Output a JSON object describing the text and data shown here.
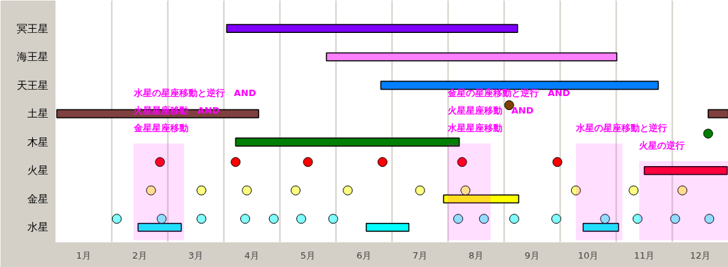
{
  "chart_data": {
    "type": "bar",
    "orientation": "horizontal",
    "legend": false,
    "grid": "x",
    "categories": [
      "冥王星",
      "海王星",
      "天王星",
      "土星",
      "木星",
      "火星",
      "金星",
      "水星"
    ],
    "xlim": [
      0,
      12
    ],
    "xticks": [
      {
        "value": 0.5,
        "label": "1月"
      },
      {
        "value": 1,
        "label": null
      },
      {
        "value": 1.5,
        "label": "2月"
      },
      {
        "value": 2,
        "label": null
      },
      {
        "value": 2.5,
        "label": "3月"
      },
      {
        "value": 3,
        "label": null
      },
      {
        "value": 3.5,
        "label": "4月"
      },
      {
        "value": 4,
        "label": null
      },
      {
        "value": 4.5,
        "label": "5月"
      },
      {
        "value": 5,
        "label": null
      },
      {
        "value": 5.5,
        "label": "6月"
      },
      {
        "value": 6,
        "label": null
      },
      {
        "value": 6.5,
        "label": "7月"
      },
      {
        "value": 7,
        "label": null
      },
      {
        "value": 7.5,
        "label": "8月"
      },
      {
        "value": 8,
        "label": null
      },
      {
        "value": 8.5,
        "label": "9月"
      },
      {
        "value": 9,
        "label": null
      },
      {
        "value": 9.5,
        "label": "10月"
      },
      {
        "value": 10,
        "label": null
      },
      {
        "value": 10.5,
        "label": "11月"
      },
      {
        "value": 11,
        "label": null
      },
      {
        "value": 11.5,
        "label": "12月"
      }
    ],
    "series": [
      {
        "base": [
          3.05,
          4.83,
          5.8,
          0.02,
          3.21,
          10.5,
          6.92,
          1.47
        ],
        "values": [
          5.19,
          5.18,
          4.95,
          3.6,
          3.99,
          1.48,
          1.34,
          0.77
        ],
        "colors": [
          "#8000ff",
          "#ff80ff",
          "#0080ff",
          "#804040",
          "#008000",
          "#ff0020",
          "#ffff00",
          "#00ffff"
        ]
      },
      {
        "base": [
          null,
          null,
          null,
          11.64,
          null,
          null,
          null,
          5.54
        ],
        "values": [
          null,
          null,
          null,
          0.36,
          null,
          null,
          null,
          0.76
        ],
        "colors": [
          "#804040",
          "#804040",
          "#804040",
          "#804040",
          "#804040",
          "#804040",
          "#804040",
          "#00ffff"
        ]
      },
      {
        "base": [
          null,
          null,
          null,
          null,
          null,
          null,
          null,
          9.41
        ],
        "values": [
          null,
          null,
          null,
          null,
          null,
          null,
          null,
          0.63
        ],
        "colors": [
          "#00ffff",
          "#00ffff",
          "#00ffff",
          "#00ffff",
          "#00ffff",
          "#00ffff",
          "#00ffff",
          "#00ffff"
        ]
      },
      {
        "type": "scatter",
        "x": [
          "土星"
        ],
        "values": [
          8.09
        ],
        "color": "#804000"
      },
      {
        "type": "scatter",
        "x": [
          "木星"
        ],
        "values": [
          11.64
        ],
        "color": "#008000"
      },
      {
        "type": "scatter",
        "x": [
          "火星",
          "火星",
          "火星",
          "火星",
          "火星",
          "火星"
        ],
        "values": [
          1.86,
          3.21,
          4.5,
          5.83,
          7.25,
          8.95
        ],
        "color": "#ff0000"
      },
      {
        "type": "scatter",
        "x": [
          "金星",
          "金星",
          "金星",
          "金星",
          "金星",
          "金星",
          "金星",
          "金星",
          "金星",
          "金星"
        ],
        "values": [
          1.7,
          2.6,
          3.41,
          4.28,
          5.21,
          6.5,
          7.31,
          9.28,
          10.31,
          11.18
        ],
        "color": "#ffff80"
      },
      {
        "type": "scatter",
        "x": [
          "水星",
          "水星",
          "水星",
          "水星",
          "水星",
          "水星",
          "水星",
          "水星",
          "水星",
          "水星",
          "水星",
          "水星",
          "水星",
          "水星",
          "水星"
        ],
        "values": [
          1.09,
          1.89,
          2.6,
          3.38,
          3.89,
          4.38,
          4.95,
          7.18,
          7.64,
          8.18,
          8.93,
          9.8,
          10.38,
          11.05,
          11.66
        ],
        "color": "#80ffff"
      }
    ],
    "bands": [
      {
        "axis": "x",
        "from": 1.39,
        "to": 2.29,
        "label": "水星の星座移動と逆行　AND\n火星星座移動　AND\n金星星座移動"
      },
      {
        "axis": "x",
        "from": 6.99,
        "to": 7.76,
        "label": "金星の星座移動と逆行　AND\n火星星座移動　AND\n水星星座移動"
      },
      {
        "axis": "x",
        "from": 9.28,
        "to": 10.11,
        "label": "水星の星座移動と逆行"
      },
      {
        "axis": "x",
        "from": 10.41,
        "to": 12,
        "label": "火星の逆行"
      }
    ]
  }
}
